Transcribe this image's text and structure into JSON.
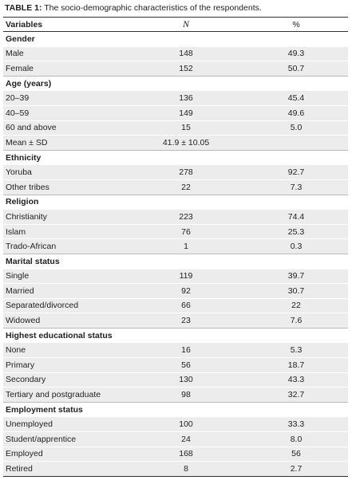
{
  "table": {
    "caption_label": "TABLE 1:",
    "caption": "The socio-demographic characteristics of the respondents.",
    "header": [
      "Variables",
      "N",
      "%"
    ],
    "sections": [
      {
        "title": "Gender",
        "rows": [
          [
            "Male",
            "148",
            "49.3"
          ],
          [
            "Female",
            "152",
            "50.7"
          ]
        ]
      },
      {
        "title": "Age (years)",
        "rows": [
          [
            "20–39",
            "136",
            "45.4"
          ],
          [
            "40–59",
            "149",
            "49.6"
          ],
          [
            "60 and above",
            "15",
            "5.0"
          ],
          [
            "Mean ± SD",
            "41.9 ± 10.05"
          ]
        ]
      },
      {
        "title": "Ethnicity",
        "rows": [
          [
            "Yoruba",
            "278",
            "92.7"
          ],
          [
            "Other tribes",
            "22",
            "7.3"
          ]
        ]
      },
      {
        "title": "Religion",
        "rows": [
          [
            "Christianity",
            "223",
            "74.4"
          ],
          [
            "Islam",
            "76",
            "25.3"
          ],
          [
            "Trado-African",
            "1",
            "0.3"
          ]
        ]
      },
      {
        "title": "Marital status",
        "rows": [
          [
            "Single",
            "119",
            "39.7"
          ],
          [
            "Married",
            "92",
            "30.7"
          ],
          [
            "Separated/divorced",
            "66",
            "22"
          ],
          [
            "Widowed",
            "23",
            "7.6"
          ]
        ]
      },
      {
        "title": "Highest educational status",
        "rows": [
          [
            "None",
            "16",
            "5.3"
          ],
          [
            "Primary",
            "56",
            "18.7"
          ],
          [
            "Secondary",
            "130",
            "43.3"
          ],
          [
            "Tertiary and postgraduate",
            "98",
            "32.7"
          ]
        ]
      },
      {
        "title": "Employment status",
        "rows": [
          [
            "Unemployed",
            "100",
            "33.3"
          ],
          [
            "Student/apprentice",
            "24",
            "8.0"
          ],
          [
            "Employed",
            "168",
            "56"
          ],
          [
            "Retired",
            "8",
            "2.7"
          ]
        ]
      }
    ]
  }
}
